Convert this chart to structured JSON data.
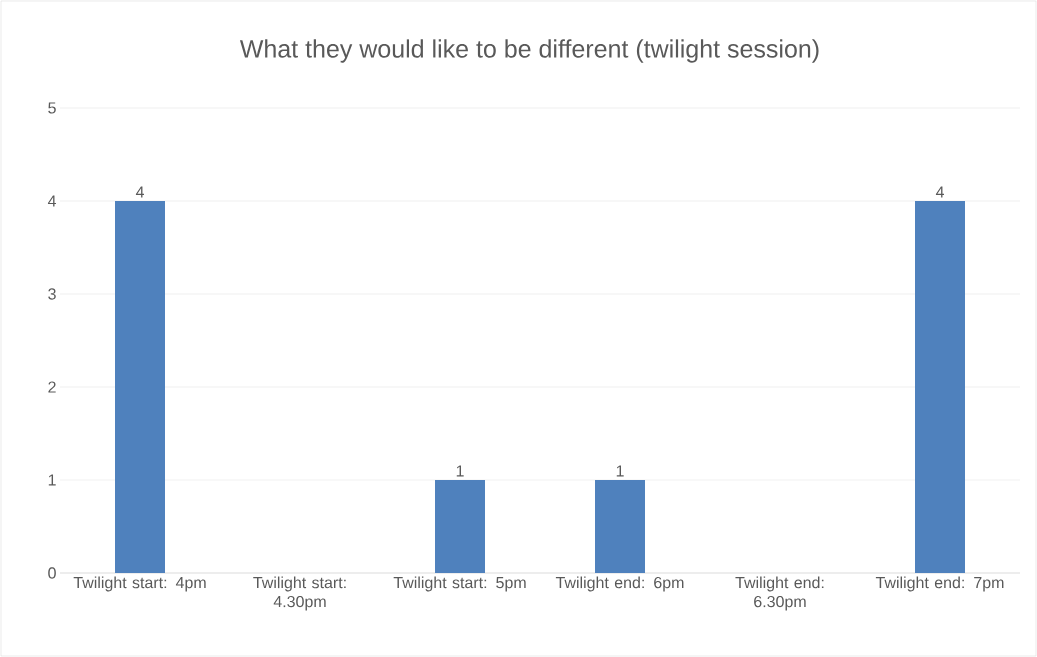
{
  "chart_data": {
    "type": "bar",
    "title": "What they would like to be different (twilight session)",
    "categories": [
      "Twilight start: 4pm",
      "Twilight start: 4.30pm",
      "Twilight start: 5pm",
      "Twilight end: 6pm",
      "Twilight end: 6.30pm",
      "Twilight end: 7pm"
    ],
    "values": [
      4,
      0,
      1,
      1,
      0,
      4
    ],
    "value_labels": [
      "4",
      null,
      "1",
      "1",
      null,
      "4"
    ],
    "color": "#4f81bd",
    "ylim": [
      0,
      5
    ],
    "yticks": [
      0,
      1,
      2,
      3,
      4,
      5
    ],
    "grid": "y",
    "legend": false
  }
}
